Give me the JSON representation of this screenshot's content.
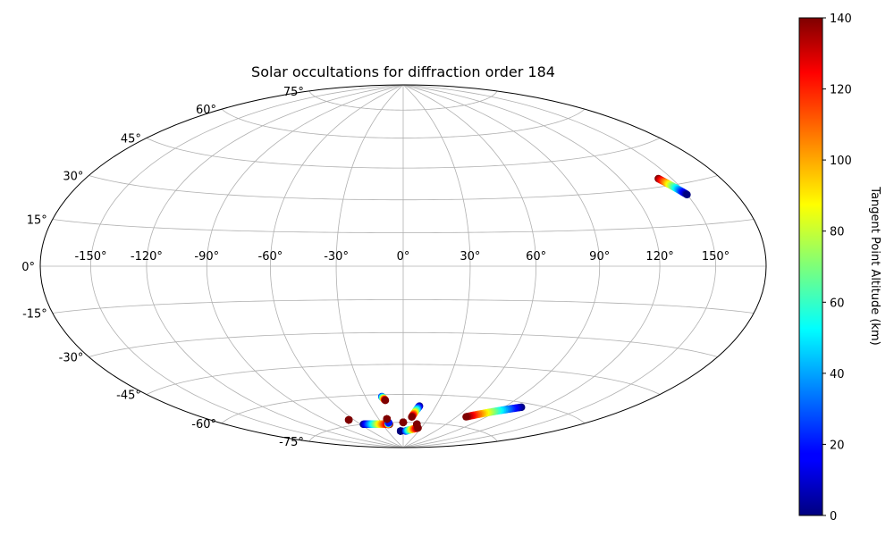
{
  "chart_data": {
    "type": "scatter",
    "projection": "hammer",
    "title": "Solar occultations for diffraction order 184",
    "lon_ticks": [
      -150,
      -120,
      -90,
      -60,
      -30,
      0,
      30,
      60,
      90,
      120,
      150
    ],
    "lon_tick_labels": [
      "-150°",
      "-120°",
      "-90°",
      "-60°",
      "-30°",
      "0°",
      "30°",
      "60°",
      "90°",
      "120°",
      "150°"
    ],
    "lat_ticks": [
      75,
      60,
      45,
      30,
      15,
      0,
      -15,
      -30,
      -45,
      -60,
      -75
    ],
    "lat_tick_labels": [
      "75°",
      "60°",
      "45°",
      "30°",
      "15°",
      "0°",
      "-15°",
      "-30°",
      "-45°",
      "-60°",
      "-75°"
    ],
    "grid": true,
    "colorbar": {
      "label": "Tangent Point Altitude (km)",
      "colormap": "jet",
      "range": [
        0,
        140
      ],
      "ticks": [
        0,
        20,
        40,
        60,
        80,
        100,
        120,
        140
      ],
      "tick_labels": [
        "0",
        "20",
        "40",
        "60",
        "80",
        "100",
        "120",
        "140"
      ]
    },
    "tracks": [
      {
        "lon_start": 142,
        "lat_start": 33,
        "alt_start": 140,
        "lon_end": 150,
        "lat_end": 26,
        "alt_end": 0
      },
      {
        "lon_start": -17,
        "lat_start": -61,
        "alt_start": 20,
        "lon_end": -15,
        "lat_end": -63,
        "alt_end": 140
      },
      {
        "lon_start": 15,
        "lat_start": -66,
        "alt_start": 0,
        "lon_end": 10,
        "lat_end": -72,
        "alt_end": 140
      },
      {
        "lon_start": -66,
        "lat_start": -72,
        "alt_start": 140,
        "lon_end": -66,
        "lat_end": -72,
        "alt_end": 140
      },
      {
        "lon_start": -56,
        "lat_start": -75,
        "alt_start": 0,
        "lon_end": -20,
        "lat_end": -76,
        "alt_end": 140
      },
      {
        "lon_start": -22,
        "lat_start": -76,
        "alt_start": 130,
        "lon_end": -20,
        "lat_end": -75,
        "alt_end": 20
      },
      {
        "lon_start": -20,
        "lat_start": -73,
        "alt_start": 140,
        "lon_end": -20,
        "lat_end": -73,
        "alt_end": 140
      },
      {
        "lon_start": 0,
        "lat_start": -75,
        "alt_start": 140,
        "lon_end": 0,
        "lat_end": -75,
        "alt_end": 140
      },
      {
        "lon_start": -5,
        "lat_start": -80,
        "alt_start": 0,
        "lon_end": -5,
        "lat_end": -80,
        "alt_end": 0
      },
      {
        "lon_start": 5,
        "lat_start": -80,
        "alt_start": 20,
        "lon_end": 25,
        "lat_end": -78,
        "alt_end": 140
      },
      {
        "lon_start": 20,
        "lat_start": -76,
        "alt_start": 140,
        "lon_end": 20,
        "lat_end": -76,
        "alt_end": 140
      },
      {
        "lon_start": 104,
        "lat_start": -62,
        "alt_start": 0,
        "lon_end": 70,
        "lat_end": -70,
        "alt_end": 140
      }
    ]
  }
}
